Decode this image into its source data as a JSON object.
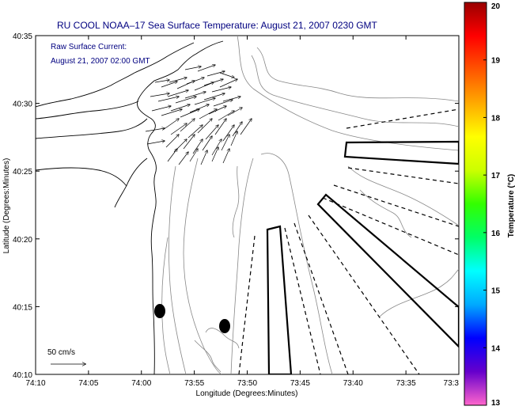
{
  "title": "RU COOL  NOAA–17  Sea Surface Temperature:  August 21, 2007 0230 GMT",
  "annotation": {
    "line1": "Raw Surface Current:",
    "line2": "August 21, 2007 02:00 GMT"
  },
  "scale": {
    "label": "50 cm/s"
  },
  "x_axis": {
    "label": "Longitude (Degrees:Minutes)",
    "ticks": [
      "74:10",
      "74:05",
      "74:00",
      "73:55",
      "73:50",
      "73:45",
      "73:40",
      "73:35",
      "73:3"
    ]
  },
  "y_axis": {
    "label": "Latitude (Degrees:Minutes)",
    "ticks": [
      "40:35",
      "40:30",
      "40:25",
      "40:20",
      "40:15",
      "40:10"
    ]
  },
  "colorbar": {
    "label": "Temperature (°C)",
    "min": 13,
    "max": 20,
    "ticks": [
      "20",
      "19",
      "18",
      "17",
      "16",
      "15",
      "14",
      "13"
    ],
    "colors": [
      "#ff66cc",
      "#6600cc",
      "#0000ff",
      "#00aaff",
      "#00ffff",
      "#00ff66",
      "#33ff00",
      "#ccff00",
      "#ffff00",
      "#ffaa00",
      "#ff5500",
      "#ff0000",
      "#990000"
    ]
  }
}
